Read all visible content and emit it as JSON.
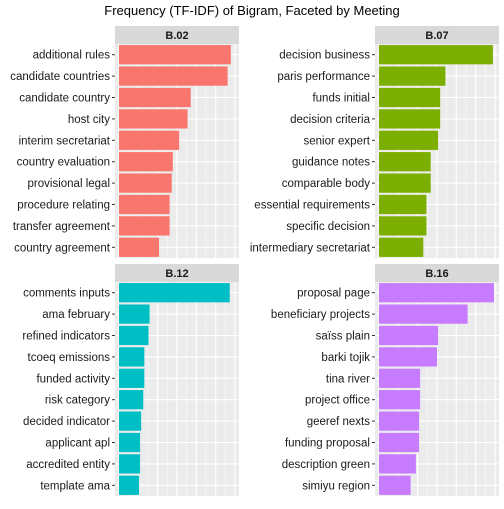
{
  "title": "Frequency (TF-IDF) of Bigram, Faceted by Meeting",
  "chart_data": [
    {
      "type": "bar",
      "orientation": "horizontal",
      "facet": "B.02",
      "color": "#F8766D",
      "categories": [
        "additional rules",
        "candidate countries",
        "candidate country",
        "host city",
        "interim secretariat",
        "country evaluation",
        "provisional legal",
        "procedure relating",
        "transfer agreement",
        "country agreement"
      ],
      "values": [
        0.0106,
        0.0103,
        0.0068,
        0.0065,
        0.0057,
        0.0051,
        0.005,
        0.0048,
        0.0048,
        0.0038
      ],
      "xlim": [
        0,
        0.011
      ],
      "grid": true
    },
    {
      "type": "bar",
      "orientation": "horizontal",
      "facet": "B.07",
      "color": "#7CAE00",
      "categories": [
        "decision business",
        "paris performance",
        "funds initial",
        "decision criteria",
        "senior expert",
        "guidance notes",
        "comparable body",
        "essential requirements",
        "specific decision",
        "intermediary secretariat"
      ],
      "values": [
        0.0108,
        0.0063,
        0.0058,
        0.0058,
        0.0056,
        0.0049,
        0.0049,
        0.0045,
        0.0045,
        0.0042
      ],
      "xlim": [
        0,
        0.011
      ],
      "grid": true
    },
    {
      "type": "bar",
      "orientation": "horizontal",
      "facet": "B.12",
      "color": "#00BFC4",
      "categories": [
        "comments inputs",
        "ama february",
        "refined indicators",
        "tcoeq emissions",
        "funded activity",
        "risk category",
        "decided indicator",
        "applicant apl",
        "accredited entity",
        "template ama"
      ],
      "values": [
        0.0105,
        0.0029,
        0.0028,
        0.0024,
        0.0024,
        0.0023,
        0.0021,
        0.002,
        0.002,
        0.0019
      ],
      "xlim": [
        0,
        0.011
      ],
      "grid": true
    },
    {
      "type": "bar",
      "orientation": "horizontal",
      "facet": "B.16",
      "color": "#C77CFF",
      "categories": [
        "proposal page",
        "beneficiary projects",
        "saïss plain",
        "barki tojik",
        "tina river",
        "project office",
        "geeref nexts",
        "funding proposal",
        "description green",
        "simiyu region"
      ],
      "values": [
        0.0109,
        0.0084,
        0.0056,
        0.0055,
        0.0039,
        0.0039,
        0.0038,
        0.0038,
        0.0035,
        0.003
      ],
      "xlim": [
        0,
        0.011
      ],
      "grid": true
    }
  ]
}
